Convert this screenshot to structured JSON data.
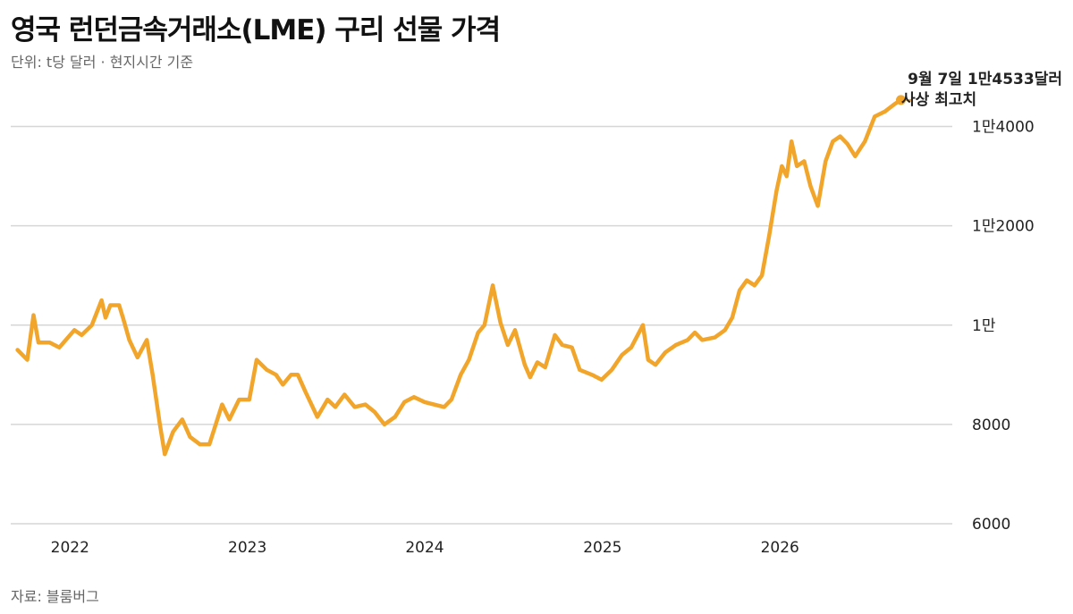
{
  "header": {
    "title": "영국 런던금속거래소(LME) 구리 선물 가격",
    "subtitle": "단위: t당 달러 · 현지시간 기준"
  },
  "footer": {
    "source": "자료: 블룸버그"
  },
  "colors": {
    "line": "#F2A52B",
    "grid": "#d6d6d6"
  },
  "chart_data": {
    "type": "line",
    "title": "영국 런던금속거래소(LME) 구리 선물 가격",
    "subtitle": "단위: t당 달러 · 현지시간 기준",
    "xlabel": "",
    "ylabel": "",
    "ylim": [
      6000,
      14500
    ],
    "xlim": [
      "2021-09-01",
      "2026-11-15"
    ],
    "grid": true,
    "y_ticks": [
      {
        "value": 6000,
        "label": "6000"
      },
      {
        "value": 8000,
        "label": "8000"
      },
      {
        "value": 10000,
        "label": "1만"
      },
      {
        "value": 12000,
        "label": "1만2000"
      },
      {
        "value": 14000,
        "label": "1만4000"
      }
    ],
    "x_ticks": [
      {
        "value": "2022-01-01",
        "label": "2022"
      },
      {
        "value": "2023-01-01",
        "label": "2023"
      },
      {
        "value": "2024-01-01",
        "label": "2024"
      },
      {
        "value": "2025-01-01",
        "label": "2025"
      },
      {
        "value": "2026-01-01",
        "label": "2026"
      }
    ],
    "annotation": {
      "line1": "9월 7일 1만4533달러",
      "line2": "사상 최고치",
      "date": "2026-09-07",
      "value": 14533
    },
    "series": [
      {
        "points": [
          [
            "2021-09-15",
            9500
          ],
          [
            "2021-10-05",
            9300
          ],
          [
            "2021-10-18",
            10200
          ],
          [
            "2021-10-28",
            9650
          ],
          [
            "2021-11-20",
            9650
          ],
          [
            "2021-12-10",
            9550
          ],
          [
            "2022-01-10",
            9900
          ],
          [
            "2022-01-25",
            9800
          ],
          [
            "2022-02-15",
            10000
          ],
          [
            "2022-03-07",
            10500
          ],
          [
            "2022-03-15",
            10150
          ],
          [
            "2022-03-25",
            10400
          ],
          [
            "2022-04-12",
            10400
          ],
          [
            "2022-04-20",
            10150
          ],
          [
            "2022-05-03",
            9700
          ],
          [
            "2022-05-20",
            9350
          ],
          [
            "2022-06-08",
            9700
          ],
          [
            "2022-06-20",
            9000
          ],
          [
            "2022-07-05",
            8000
          ],
          [
            "2022-07-15",
            7400
          ],
          [
            "2022-08-01",
            7850
          ],
          [
            "2022-08-20",
            8100
          ],
          [
            "2022-09-05",
            7750
          ],
          [
            "2022-09-25",
            7600
          ],
          [
            "2022-10-15",
            7600
          ],
          [
            "2022-11-10",
            8400
          ],
          [
            "2022-11-25",
            8100
          ],
          [
            "2022-12-15",
            8500
          ],
          [
            "2023-01-05",
            8500
          ],
          [
            "2023-01-20",
            9300
          ],
          [
            "2023-02-10",
            9100
          ],
          [
            "2023-03-01",
            9000
          ],
          [
            "2023-03-15",
            8800
          ],
          [
            "2023-04-01",
            9000
          ],
          [
            "2023-04-15",
            9000
          ],
          [
            "2023-05-01",
            8650
          ],
          [
            "2023-05-25",
            8150
          ],
          [
            "2023-06-15",
            8500
          ],
          [
            "2023-07-01",
            8350
          ],
          [
            "2023-07-20",
            8600
          ],
          [
            "2023-08-10",
            8350
          ],
          [
            "2023-09-01",
            8400
          ],
          [
            "2023-09-20",
            8250
          ],
          [
            "2023-10-10",
            8000
          ],
          [
            "2023-11-01",
            8150
          ],
          [
            "2023-11-20",
            8450
          ],
          [
            "2023-12-10",
            8550
          ],
          [
            "2024-01-01",
            8450
          ],
          [
            "2024-01-20",
            8400
          ],
          [
            "2024-02-10",
            8350
          ],
          [
            "2024-02-25",
            8500
          ],
          [
            "2024-03-15",
            9000
          ],
          [
            "2024-04-01",
            9300
          ],
          [
            "2024-04-20",
            9850
          ],
          [
            "2024-05-03",
            10000
          ],
          [
            "2024-05-20",
            10800
          ],
          [
            "2024-06-05",
            10050
          ],
          [
            "2024-06-20",
            9600
          ],
          [
            "2024-07-05",
            9900
          ],
          [
            "2024-07-25",
            9200
          ],
          [
            "2024-08-05",
            8950
          ],
          [
            "2024-08-20",
            9250
          ],
          [
            "2024-09-05",
            9150
          ],
          [
            "2024-09-25",
            9800
          ],
          [
            "2024-10-10",
            9600
          ],
          [
            "2024-10-30",
            9550
          ],
          [
            "2024-11-15",
            9100
          ],
          [
            "2024-12-10",
            9000
          ],
          [
            "2024-12-30",
            8900
          ],
          [
            "2025-01-20",
            9100
          ],
          [
            "2025-02-10",
            9400
          ],
          [
            "2025-03-01",
            9550
          ],
          [
            "2025-03-25",
            10000
          ],
          [
            "2025-04-05",
            9300
          ],
          [
            "2025-04-20",
            9200
          ],
          [
            "2025-05-10",
            9450
          ],
          [
            "2025-06-01",
            9600
          ],
          [
            "2025-06-25",
            9700
          ],
          [
            "2025-07-10",
            9850
          ],
          [
            "2025-07-25",
            9700
          ],
          [
            "2025-08-20",
            9750
          ],
          [
            "2025-09-10",
            9900
          ],
          [
            "2025-09-25",
            10150
          ],
          [
            "2025-10-10",
            10700
          ],
          [
            "2025-10-25",
            10900
          ],
          [
            "2025-11-10",
            10800
          ],
          [
            "2025-11-25",
            11000
          ],
          [
            "2025-12-10",
            11800
          ],
          [
            "2025-12-25",
            12700
          ],
          [
            "2026-01-05",
            13200
          ],
          [
            "2026-01-15",
            13000
          ],
          [
            "2026-01-25",
            13700
          ],
          [
            "2026-02-05",
            13200
          ],
          [
            "2026-02-20",
            13300
          ],
          [
            "2026-03-05",
            12800
          ],
          [
            "2026-03-20",
            12400
          ],
          [
            "2026-04-05",
            13300
          ],
          [
            "2026-04-20",
            13700
          ],
          [
            "2026-05-05",
            13800
          ],
          [
            "2026-05-20",
            13650
          ],
          [
            "2026-06-05",
            13400
          ],
          [
            "2026-06-25",
            13700
          ],
          [
            "2026-07-15",
            14200
          ],
          [
            "2026-08-05",
            14300
          ],
          [
            "2026-08-25",
            14450
          ],
          [
            "2026-09-07",
            14533
          ]
        ]
      }
    ]
  }
}
